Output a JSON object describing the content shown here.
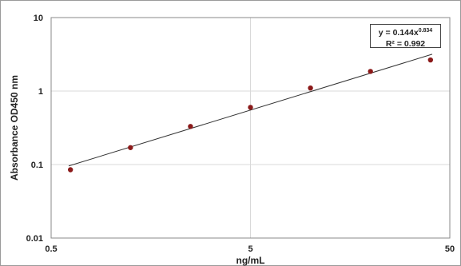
{
  "chart_data": {
    "type": "scatter",
    "xlabel": "ng/mL",
    "ylabel": "Absorbance OD450 nm",
    "x_scale": "log",
    "y_scale": "log",
    "xlim": [
      0.5,
      50
    ],
    "ylim": [
      0.01,
      10
    ],
    "x_ticks": [
      "0.5",
      "5",
      "50"
    ],
    "y_ticks": [
      "0.01",
      "0.1",
      "1",
      "10"
    ],
    "grid": true,
    "points": [
      {
        "x": 0.625,
        "y": 0.085
      },
      {
        "x": 1.25,
        "y": 0.17
      },
      {
        "x": 2.5,
        "y": 0.33
      },
      {
        "x": 5,
        "y": 0.6
      },
      {
        "x": 10,
        "y": 1.1
      },
      {
        "x": 20,
        "y": 1.85
      },
      {
        "x": 40,
        "y": 2.65
      }
    ],
    "trendline": {
      "a": 0.144,
      "b": 0.834,
      "x_range": [
        0.625,
        40
      ],
      "equation_base": "y = 0.144x",
      "equation_exponent": "0.834",
      "r_squared_label": "R² = 0.992"
    },
    "colors": {
      "marker": "#8b1a1a",
      "trendline": "#333333",
      "grid": "#d9d9d9",
      "axis": "#888888"
    }
  }
}
